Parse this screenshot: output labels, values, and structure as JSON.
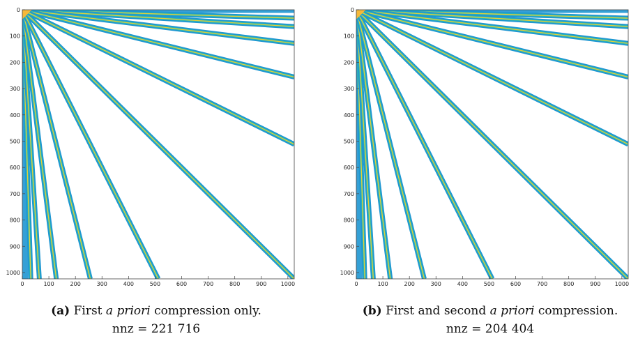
{
  "colors": {
    "band_fill": "#1e96d2",
    "band_core": "#2ab5b5",
    "band_line": "#e4cf3a",
    "apex": "#f6b93a",
    "axis": "#444444"
  },
  "chart_data": [
    {
      "type": "heatmap",
      "subtype": "sparsity-pattern",
      "xlim": [
        0,
        1024
      ],
      "ylim": [
        0,
        1024
      ],
      "y_reversed": true,
      "xticks": [
        0,
        100,
        200,
        300,
        400,
        500,
        600,
        700,
        800,
        900,
        1000
      ],
      "yticks": [
        0,
        100,
        200,
        300,
        400,
        500,
        600,
        700,
        800,
        900,
        1000
      ],
      "diagonal_bands_x_endpoints_at_bottom": [
        32,
        64,
        128,
        256,
        512,
        1024
      ],
      "diagonal_bands_y_endpoints_at_right": [
        32,
        64,
        128,
        256,
        512
      ],
      "nnz": 221716,
      "caption": {
        "label": "(a)",
        "text_before": "First",
        "italic": "a priori",
        "text_after": "compression only.",
        "nnz_line": "nnz = 221 716"
      }
    },
    {
      "type": "heatmap",
      "subtype": "sparsity-pattern",
      "xlim": [
        0,
        1024
      ],
      "ylim": [
        0,
        1024
      ],
      "y_reversed": true,
      "xticks": [
        0,
        100,
        200,
        300,
        400,
        500,
        600,
        700,
        800,
        900,
        1000
      ],
      "yticks": [
        0,
        100,
        200,
        300,
        400,
        500,
        600,
        700,
        800,
        900,
        1000
      ],
      "diagonal_bands_x_endpoints_at_bottom": [
        32,
        64,
        128,
        256,
        512,
        1024
      ],
      "diagonal_bands_y_endpoints_at_right": [
        32,
        64,
        128,
        256,
        512
      ],
      "nnz": 204404,
      "caption": {
        "label": "(b)",
        "text_before": "First and second",
        "italic": "a priori",
        "text_after": "compression.",
        "nnz_line": "nnz = 204 404"
      }
    }
  ]
}
